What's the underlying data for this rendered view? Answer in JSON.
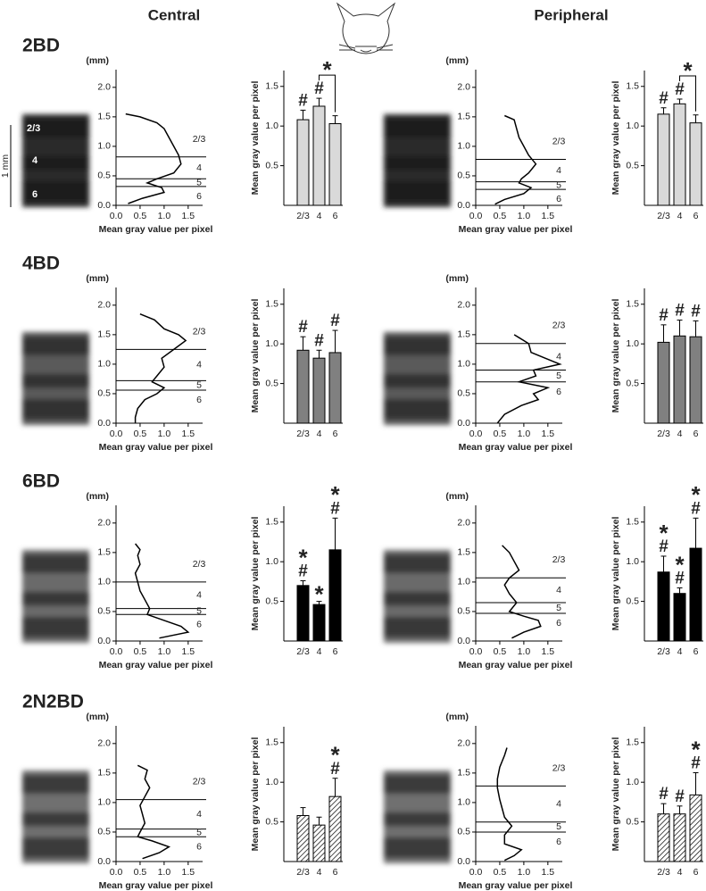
{
  "columns": [
    "Central",
    "Peripheral"
  ],
  "rows": [
    "2BD",
    "4BD",
    "6BD",
    "2N2BD"
  ],
  "image_labels": [
    "2/3",
    "4",
    "6"
  ],
  "scale_bar": "1 mm",
  "chart_data": [
    {
      "type": "line",
      "ylabel": "(mm)",
      "xlabel": "Mean gray value per pixel",
      "color": "#000000",
      "ylim": [
        0,
        2.3
      ],
      "yticks": [
        {
          "value": 0,
          "label": "0.0"
        },
        {
          "value": 0.5,
          "label": "0.5"
        },
        {
          "value": 1,
          "label": "1.0"
        },
        {
          "value": 1.5,
          "label": "1.5"
        },
        {
          "value": 2,
          "label": "2.0"
        }
      ],
      "xlim": [
        0,
        1.8
      ],
      "xticks": [
        {
          "value": 0,
          "label": "0.0"
        },
        {
          "value": 0.5,
          "label": "0.5"
        },
        {
          "value": 1,
          "label": "1.0"
        },
        {
          "value": 1.5,
          "label": "1.5"
        }
      ],
      "depth": [
        1.55,
        1.5,
        1.4,
        1.3,
        1.15,
        1.0,
        0.85,
        0.7,
        0.55,
        0.45,
        0.38,
        0.3,
        0.22,
        0.12,
        0.03
      ],
      "values": [
        0.2,
        0.5,
        0.85,
        1.0,
        1.1,
        1.2,
        1.3,
        1.35,
        1.2,
        0.85,
        0.65,
        0.95,
        1.0,
        0.55,
        0.25
      ],
      "boundaries": [
        0.82,
        0.45,
        0.32
      ],
      "layer_labels": [
        "2/3",
        "4",
        "5",
        "6"
      ]
    },
    {
      "type": "bar",
      "ylabel": "Mean gray value per pixel",
      "categories": [
        "2/3",
        "4",
        "6"
      ],
      "values": [
        1.08,
        1.25,
        1.03
      ],
      "errors": [
        0.12,
        0.1,
        0.1
      ],
      "annotations": [
        [
          "#"
        ],
        [
          "#"
        ],
        []
      ],
      "color": "#d9d9d9",
      "hatch": false,
      "ylim": [
        0,
        1.7
      ],
      "yticks": [
        {
          "value": 0.5,
          "label": "0.5"
        },
        {
          "value": 1,
          "label": "1.0"
        },
        {
          "value": 1.5,
          "label": "1.5"
        }
      ],
      "bracket": {
        "between": [
          "4",
          "6"
        ],
        "label": "*"
      }
    },
    {
      "type": "line",
      "ylabel": "(mm)",
      "xlabel": "Mean gray value per pixel",
      "color": "#000000",
      "ylim": [
        0,
        2.3
      ],
      "yticks": [
        {
          "value": 0,
          "label": "0.0"
        },
        {
          "value": 0.5,
          "label": "0.5"
        },
        {
          "value": 1,
          "label": "1.0"
        },
        {
          "value": 1.5,
          "label": "1.5"
        },
        {
          "value": 2,
          "label": "2.0"
        }
      ],
      "xlim": [
        0,
        1.8
      ],
      "xticks": [
        {
          "value": 0,
          "label": "0.0"
        },
        {
          "value": 0.5,
          "label": "0.5"
        },
        {
          "value": 1,
          "label": "1.0"
        },
        {
          "value": 1.5,
          "label": "1.5"
        }
      ],
      "depth": [
        1.52,
        1.45,
        1.3,
        1.15,
        1.0,
        0.85,
        0.7,
        0.55,
        0.45,
        0.38,
        0.3,
        0.2,
        0.1,
        0.02
      ],
      "values": [
        0.6,
        0.8,
        0.85,
        0.9,
        1.0,
        1.1,
        1.25,
        1.1,
        0.95,
        0.9,
        1.15,
        1.0,
        0.6,
        0.4
      ],
      "boundaries": [
        0.78,
        0.4,
        0.27
      ],
      "layer_labels": [
        "2/3",
        "4",
        "5",
        "6"
      ]
    },
    {
      "type": "bar",
      "ylabel": "Mean gray value per pixel",
      "categories": [
        "2/3",
        "4",
        "6"
      ],
      "values": [
        1.15,
        1.28,
        1.04
      ],
      "errors": [
        0.08,
        0.06,
        0.1
      ],
      "annotations": [
        [
          "#"
        ],
        [
          "#"
        ],
        []
      ],
      "color": "#d9d9d9",
      "hatch": false,
      "ylim": [
        0,
        1.7
      ],
      "yticks": [
        {
          "value": 0.5,
          "label": "0.5"
        },
        {
          "value": 1,
          "label": "1.0"
        },
        {
          "value": 1.5,
          "label": "1.5"
        }
      ],
      "bracket": {
        "between": [
          "4",
          "6"
        ],
        "label": "*"
      }
    },
    {
      "type": "line",
      "ylabel": "(mm)",
      "xlabel": "Mean gray value per pixel",
      "color": "#000000",
      "ylim": [
        0,
        2.3
      ],
      "yticks": [
        {
          "value": 0,
          "label": "0.0"
        },
        {
          "value": 0.5,
          "label": "0.5"
        },
        {
          "value": 1,
          "label": "1.0"
        },
        {
          "value": 1.5,
          "label": "1.5"
        },
        {
          "value": 2,
          "label": "2.0"
        }
      ],
      "xlim": [
        0,
        1.8
      ],
      "xticks": [
        {
          "value": 0,
          "label": "0.0"
        },
        {
          "value": 0.5,
          "label": "0.5"
        },
        {
          "value": 1,
          "label": "1.0"
        },
        {
          "value": 1.5,
          "label": "1.5"
        }
      ],
      "depth": [
        1.85,
        1.75,
        1.6,
        1.5,
        1.4,
        1.25,
        1.1,
        0.95,
        0.8,
        0.7,
        0.6,
        0.5,
        0.4,
        0.25,
        0.1,
        0.0
      ],
      "values": [
        0.5,
        0.8,
        1.0,
        1.3,
        1.45,
        1.2,
        0.95,
        1.0,
        0.85,
        0.75,
        1.0,
        0.85,
        0.6,
        0.45,
        0.4,
        0.4
      ],
      "boundaries": [
        1.25,
        0.72,
        0.56
      ],
      "layer_labels": [
        "2/3",
        "4",
        "5",
        "6"
      ]
    },
    {
      "type": "bar",
      "ylabel": "Mean gray value per pixel",
      "categories": [
        "2/3",
        "4",
        "6"
      ],
      "values": [
        0.92,
        0.82,
        0.89
      ],
      "errors": [
        0.17,
        0.1,
        0.28
      ],
      "annotations": [
        [
          "#"
        ],
        [
          "#"
        ],
        [
          "#"
        ]
      ],
      "color": "#808080",
      "hatch": false,
      "ylim": [
        0,
        1.7
      ],
      "yticks": [
        {
          "value": 0.5,
          "label": "0.5"
        },
        {
          "value": 1,
          "label": "1.0"
        },
        {
          "value": 1.5,
          "label": "1.5"
        }
      ]
    },
    {
      "type": "line",
      "ylabel": "(mm)",
      "xlabel": "Mean gray value per pixel",
      "color": "#000000",
      "ylim": [
        0,
        2.3
      ],
      "yticks": [
        {
          "value": 0,
          "label": "0.0"
        },
        {
          "value": 0.5,
          "label": "0.5"
        },
        {
          "value": 1,
          "label": "1.0"
        },
        {
          "value": 1.5,
          "label": "1.5"
        },
        {
          "value": 2,
          "label": "2.0"
        }
      ],
      "xlim": [
        0,
        1.8
      ],
      "xticks": [
        {
          "value": 0,
          "label": "0.0"
        },
        {
          "value": 0.5,
          "label": "0.5"
        },
        {
          "value": 1,
          "label": "1.0"
        },
        {
          "value": 1.5,
          "label": "1.5"
        }
      ],
      "depth": [
        1.5,
        1.45,
        1.35,
        1.2,
        1.1,
        1.0,
        0.9,
        0.8,
        0.7,
        0.6,
        0.5,
        0.4,
        0.3,
        0.15,
        0.05,
        0.0
      ],
      "values": [
        0.8,
        0.9,
        1.1,
        1.15,
        1.45,
        1.75,
        1.2,
        1.25,
        0.9,
        1.5,
        1.2,
        1.3,
        0.95,
        0.6,
        0.5,
        0.45
      ],
      "boundaries": [
        1.35,
        0.9,
        0.7
      ],
      "layer_labels": [
        "2/3",
        "4",
        "5",
        "6"
      ]
    },
    {
      "type": "bar",
      "ylabel": "Mean gray value per pixel",
      "categories": [
        "2/3",
        "4",
        "6"
      ],
      "values": [
        1.02,
        1.1,
        1.09
      ],
      "errors": [
        0.22,
        0.2,
        0.2
      ],
      "annotations": [
        [
          "#"
        ],
        [
          "#"
        ],
        [
          "#"
        ]
      ],
      "color": "#808080",
      "hatch": false,
      "ylim": [
        0,
        1.7
      ],
      "yticks": [
        {
          "value": 0.5,
          "label": "0.5"
        },
        {
          "value": 1,
          "label": "1.0"
        },
        {
          "value": 1.5,
          "label": "1.5"
        }
      ]
    },
    {
      "type": "line",
      "ylabel": "(mm)",
      "xlabel": "Mean gray value per pixel",
      "color": "#000000",
      "ylim": [
        0,
        2.3
      ],
      "yticks": [
        {
          "value": 0,
          "label": "0.0"
        },
        {
          "value": 0.5,
          "label": "0.5"
        },
        {
          "value": 1,
          "label": "1.0"
        },
        {
          "value": 1.5,
          "label": "1.5"
        },
        {
          "value": 2,
          "label": "2.0"
        }
      ],
      "xlim": [
        0,
        1.8
      ],
      "xticks": [
        {
          "value": 0,
          "label": "0.0"
        },
        {
          "value": 0.5,
          "label": "0.5"
        },
        {
          "value": 1,
          "label": "1.0"
        },
        {
          "value": 1.5,
          "label": "1.5"
        }
      ],
      "depth": [
        1.65,
        1.55,
        1.45,
        1.3,
        1.15,
        1.0,
        0.85,
        0.7,
        0.55,
        0.45,
        0.35,
        0.25,
        0.15,
        0.05
      ],
      "values": [
        0.4,
        0.5,
        0.45,
        0.5,
        0.4,
        0.45,
        0.5,
        0.6,
        0.7,
        0.65,
        1.0,
        1.35,
        1.5,
        0.9
      ],
      "boundaries": [
        1.0,
        0.55,
        0.45
      ],
      "layer_labels": [
        "2/3",
        "4",
        "5",
        "6"
      ]
    },
    {
      "type": "bar",
      "ylabel": "Mean gray value per pixel",
      "categories": [
        "2/3",
        "4",
        "6"
      ],
      "values": [
        0.7,
        0.46,
        1.15
      ],
      "errors": [
        0.06,
        0.04,
        0.4
      ],
      "annotations": [
        [
          "*",
          "#"
        ],
        [
          "*"
        ],
        [
          "*",
          "#"
        ]
      ],
      "color": "#000000",
      "hatch": false,
      "ylim": [
        0,
        1.7
      ],
      "yticks": [
        {
          "value": 0.5,
          "label": "0.5"
        },
        {
          "value": 1,
          "label": "1.0"
        },
        {
          "value": 1.5,
          "label": "1.5"
        }
      ]
    },
    {
      "type": "line",
      "ylabel": "(mm)",
      "xlabel": "Mean gray value per pixel",
      "color": "#000000",
      "ylim": [
        0,
        2.3
      ],
      "yticks": [
        {
          "value": 0,
          "label": "0.0"
        },
        {
          "value": 0.5,
          "label": "0.5"
        },
        {
          "value": 1,
          "label": "1.0"
        },
        {
          "value": 1.5,
          "label": "1.5"
        },
        {
          "value": 2,
          "label": "2.0"
        }
      ],
      "xlim": [
        0,
        1.8
      ],
      "xticks": [
        {
          "value": 0,
          "label": "0.0"
        },
        {
          "value": 0.5,
          "label": "0.5"
        },
        {
          "value": 1,
          "label": "1.0"
        },
        {
          "value": 1.5,
          "label": "1.5"
        }
      ],
      "depth": [
        1.62,
        1.5,
        1.35,
        1.2,
        1.07,
        0.95,
        0.8,
        0.65,
        0.5,
        0.42,
        0.35,
        0.25,
        0.15,
        0.05
      ],
      "values": [
        0.55,
        0.7,
        0.8,
        0.9,
        0.7,
        0.6,
        0.7,
        0.85,
        0.7,
        1.0,
        1.3,
        1.35,
        1.0,
        0.75
      ],
      "boundaries": [
        1.07,
        0.65,
        0.47
      ],
      "layer_labels": [
        "2/3",
        "4",
        "5",
        "6"
      ]
    },
    {
      "type": "bar",
      "ylabel": "Mean gray value per pixel",
      "categories": [
        "2/3",
        "4",
        "6"
      ],
      "values": [
        0.87,
        0.6,
        1.17
      ],
      "errors": [
        0.2,
        0.07,
        0.38
      ],
      "annotations": [
        [
          "*",
          "#"
        ],
        [
          "*",
          "#"
        ],
        [
          "*",
          "#"
        ]
      ],
      "color": "#000000",
      "hatch": false,
      "ylim": [
        0,
        1.7
      ],
      "yticks": [
        {
          "value": 0.5,
          "label": "0.5"
        },
        {
          "value": 1,
          "label": "1.0"
        },
        {
          "value": 1.5,
          "label": "1.5"
        }
      ]
    },
    {
      "type": "line",
      "ylabel": "(mm)",
      "xlabel": "Mean gray value per pixel",
      "color": "#000000",
      "ylim": [
        0,
        2.3
      ],
      "yticks": [
        {
          "value": 0,
          "label": "0.0"
        },
        {
          "value": 0.5,
          "label": "0.5"
        },
        {
          "value": 1,
          "label": "1.0"
        },
        {
          "value": 1.5,
          "label": "1.5"
        },
        {
          "value": 2,
          "label": "2.0"
        }
      ],
      "xlim": [
        0,
        1.8
      ],
      "xticks": [
        {
          "value": 0,
          "label": "0.0"
        },
        {
          "value": 0.5,
          "label": "0.5"
        },
        {
          "value": 1,
          "label": "1.0"
        },
        {
          "value": 1.5,
          "label": "1.5"
        }
      ],
      "depth": [
        1.63,
        1.55,
        1.4,
        1.25,
        1.1,
        0.95,
        0.8,
        0.65,
        0.5,
        0.42,
        0.35,
        0.25,
        0.15,
        0.05
      ],
      "values": [
        0.45,
        0.65,
        0.6,
        0.7,
        0.6,
        0.5,
        0.55,
        0.6,
        0.5,
        0.45,
        0.75,
        1.1,
        0.9,
        0.55
      ],
      "boundaries": [
        1.05,
        0.55,
        0.42
      ],
      "layer_labels": [
        "2/3",
        "4",
        "5",
        "6"
      ]
    },
    {
      "type": "bar",
      "ylabel": "Mean gray value per pixel",
      "categories": [
        "2/3",
        "4",
        "6"
      ],
      "values": [
        0.58,
        0.46,
        0.82
      ],
      "errors": [
        0.1,
        0.1,
        0.23
      ],
      "annotations": [
        [],
        [],
        [
          "*",
          "#"
        ]
      ],
      "color": "#ffffff",
      "hatch": true,
      "ylim": [
        0,
        1.7
      ],
      "yticks": [
        {
          "value": 0.5,
          "label": "0.5"
        },
        {
          "value": 1,
          "label": "1.0"
        },
        {
          "value": 1.5,
          "label": "1.5"
        }
      ]
    },
    {
      "type": "line",
      "ylabel": "(mm)",
      "xlabel": "Mean gray value per pixel",
      "color": "#000000",
      "ylim": [
        0,
        2.3
      ],
      "yticks": [
        {
          "value": 0,
          "label": "0.0"
        },
        {
          "value": 0.5,
          "label": "0.5"
        },
        {
          "value": 1,
          "label": "1.0"
        },
        {
          "value": 1.5,
          "label": "1.5"
        },
        {
          "value": 2,
          "label": "2.0"
        }
      ],
      "xlim": [
        0,
        1.8
      ],
      "xticks": [
        {
          "value": 0,
          "label": "0.0"
        },
        {
          "value": 0.5,
          "label": "0.5"
        },
        {
          "value": 1,
          "label": "1.0"
        },
        {
          "value": 1.5,
          "label": "1.5"
        }
      ],
      "depth": [
        1.93,
        1.8,
        1.6,
        1.4,
        1.25,
        1.05,
        0.9,
        0.75,
        0.6,
        0.45,
        0.3,
        0.2,
        0.1,
        0.02
      ],
      "values": [
        0.65,
        0.6,
        0.5,
        0.45,
        0.45,
        0.5,
        0.55,
        0.6,
        0.75,
        0.6,
        0.6,
        0.95,
        0.8,
        0.6
      ],
      "boundaries": [
        1.28,
        0.67,
        0.5
      ],
      "layer_labels": [
        "2/3",
        "4",
        "5",
        "6"
      ]
    },
    {
      "type": "bar",
      "ylabel": "Mean gray value per pixel",
      "categories": [
        "2/3",
        "4",
        "6"
      ],
      "values": [
        0.6,
        0.6,
        0.84
      ],
      "errors": [
        0.13,
        0.1,
        0.28
      ],
      "annotations": [
        [
          "#"
        ],
        [
          "#"
        ],
        [
          "*",
          "#"
        ]
      ],
      "color": "#ffffff",
      "hatch": true,
      "ylim": [
        0,
        1.7
      ],
      "yticks": [
        {
          "value": 0.5,
          "label": "0.5"
        },
        {
          "value": 1,
          "label": "1.0"
        },
        {
          "value": 1.5,
          "label": "1.5"
        }
      ]
    }
  ]
}
